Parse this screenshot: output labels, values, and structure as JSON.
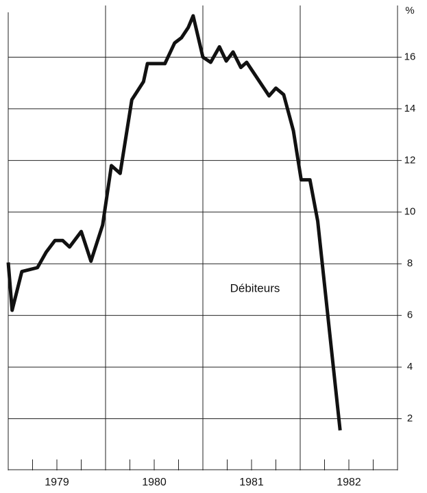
{
  "chart_data": {
    "type": "line",
    "y_unit_label": "%",
    "annotation": "Débiteurs",
    "x": [
      1979.0,
      1979.04,
      1979.14,
      1979.3,
      1979.39,
      1979.48,
      1979.56,
      1979.63,
      1979.75,
      1979.85,
      1979.97,
      1980.06,
      1980.15,
      1980.27,
      1980.39,
      1980.43,
      1980.61,
      1980.71,
      1980.78,
      1980.85,
      1980.9,
      1981.0,
      1981.08,
      1981.17,
      1981.24,
      1981.31,
      1981.39,
      1981.45,
      1981.68,
      1981.75,
      1981.83,
      1981.93,
      1982.01,
      1982.1,
      1982.18,
      1982.41
    ],
    "series": [
      {
        "color": "#111111",
        "values": [
          8.05,
          6.2,
          7.7,
          7.85,
          8.45,
          8.9,
          8.9,
          8.65,
          9.25,
          8.1,
          9.5,
          11.8,
          11.5,
          14.35,
          15.05,
          15.75,
          15.75,
          16.55,
          16.75,
          17.15,
          17.6,
          16.0,
          15.8,
          16.4,
          15.85,
          16.2,
          15.6,
          15.8,
          14.5,
          14.8,
          14.55,
          13.15,
          11.25,
          11.25,
          9.65,
          1.55
        ]
      }
    ],
    "xlim": [
      1979,
      1983
    ],
    "xticks": [
      {
        "value": 1979.5,
        "label": "1979"
      },
      {
        "value": 1980.5,
        "label": "1980"
      },
      {
        "value": 1981.5,
        "label": "1981"
      },
      {
        "value": 1982.5,
        "label": "1982"
      }
    ],
    "xgrid": [
      1980,
      1981,
      1982
    ],
    "xminorticks": [
      1979.25,
      1979.5,
      1979.75,
      1980.25,
      1980.5,
      1980.75,
      1981.25,
      1981.5,
      1981.75,
      1982.25,
      1982.5,
      1982.75
    ],
    "ylim": [
      0,
      18
    ],
    "yticks": [
      2,
      4,
      6,
      8,
      10,
      12,
      14,
      16
    ],
    "grid": true
  }
}
